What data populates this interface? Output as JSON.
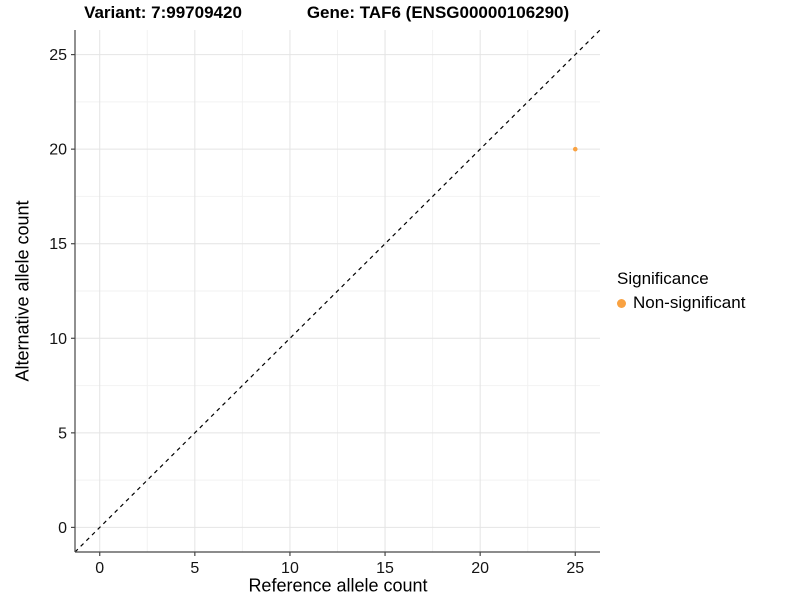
{
  "chart_data": {
    "type": "scatter",
    "title_left": "Variant: 7:99709420",
    "title_right": "Gene: TAF6 (ENSG00000106290)",
    "xlabel": "Reference allele count",
    "ylabel": "Alternative allele count",
    "xlim": [
      -1.3,
      26.3
    ],
    "ylim": [
      -1.3,
      26.3
    ],
    "x_ticks": [
      0,
      5,
      10,
      15,
      20,
      25
    ],
    "y_ticks": [
      0,
      5,
      10,
      15,
      20,
      25
    ],
    "x_minor_ticks": [
      2.5,
      7.5,
      12.5,
      17.5,
      22.5
    ],
    "y_minor_ticks": [
      2.5,
      7.5,
      12.5,
      17.5,
      22.5
    ],
    "grid": true,
    "reference_line": {
      "kind": "identity-diagonal",
      "style": "dashed",
      "color": "#000000"
    },
    "points": [
      {
        "x": 25,
        "y": 20,
        "series": "Non-significant"
      }
    ],
    "legend": {
      "title": "Significance",
      "position": "right",
      "entries": [
        {
          "label": "Non-significant",
          "color": "#F9A242"
        }
      ]
    },
    "colors": {
      "grid_major": "#e4e4e4",
      "grid_minor": "#f2f2f2",
      "axis_line": "#474747",
      "tick_text": "#141414",
      "background": "#ffffff"
    }
  }
}
